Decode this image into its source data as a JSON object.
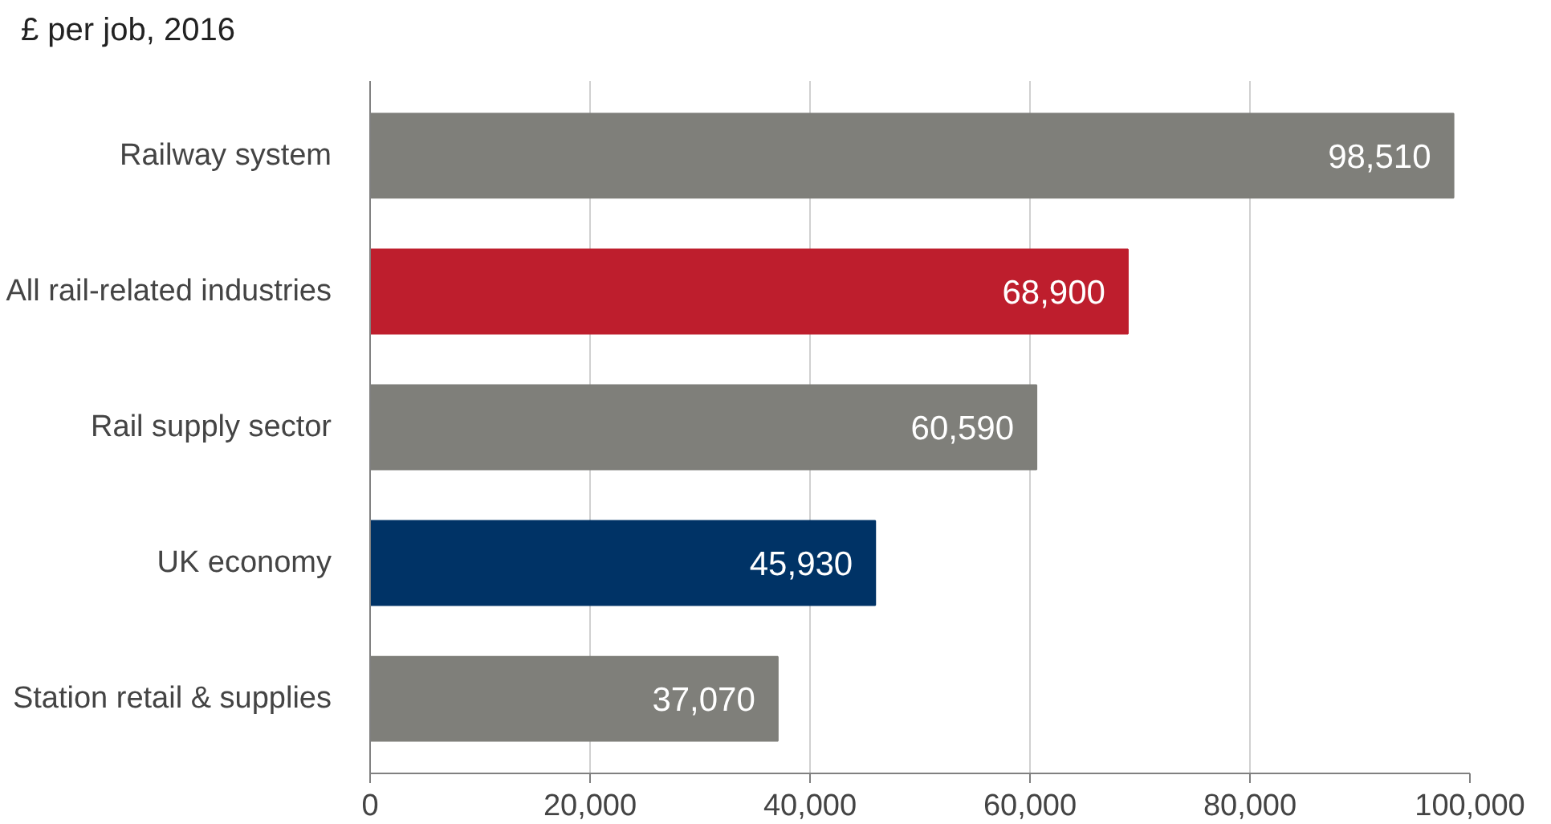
{
  "chart_data": {
    "type": "bar",
    "orientation": "horizontal",
    "title": "£ per job, 2016",
    "categories": [
      "Railway system",
      "All rail-related industries",
      "Rail supply sector",
      "UK economy",
      "Station retail & supplies"
    ],
    "values": [
      98510,
      68900,
      60590,
      45930,
      37070
    ],
    "colors": [
      "#7f7f7a",
      "#be1e2d",
      "#7f7f7a",
      "#003366",
      "#7f7f7a"
    ],
    "value_labels": [
      "98,510",
      "68,900",
      "60,590",
      "45,930",
      "37,070"
    ],
    "xlim": [
      0,
      100000
    ],
    "xticks": [
      {
        "value": 0,
        "label": "0"
      },
      {
        "value": 20000,
        "label": "20,000"
      },
      {
        "value": 40000,
        "label": "40,000"
      },
      {
        "value": 60000,
        "label": "60,000"
      },
      {
        "value": 80000,
        "label": "80,000"
      },
      {
        "value": 100000,
        "label": "100,000"
      }
    ],
    "grid": "x"
  }
}
